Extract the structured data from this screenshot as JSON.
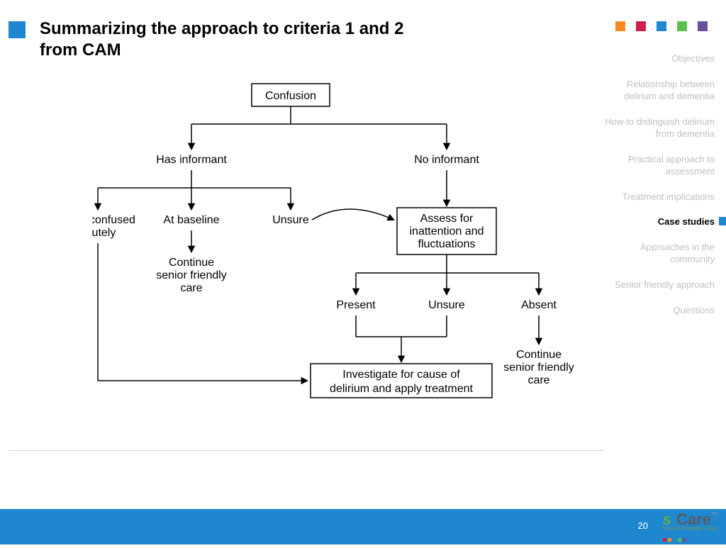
{
  "colors": {
    "blue": "#1e87d0",
    "orange": "#f68b1f",
    "red": "#cc1f4a",
    "green": "#5bbf4b",
    "purple": "#6a4ea0",
    "footer": "#1e87d0",
    "grey_text": "#bfbfbf"
  },
  "title": "Summarizing the approach to criteria 1 and 2 from CAM",
  "top_dots": [
    "#f68b1f",
    "#cc1f4a",
    "#1e87d0",
    "#5bbf4b",
    "#6a4ea0"
  ],
  "sidebar": {
    "items": [
      {
        "label": "Objectives",
        "active": false
      },
      {
        "label": "Relationship between delirium and dementia",
        "active": false
      },
      {
        "label": "How to distinguish delirium from dementia",
        "active": false
      },
      {
        "label": "Practical approach to assessment",
        "active": false
      },
      {
        "label": "Treatment implications",
        "active": false
      },
      {
        "label": "Case studies",
        "active": true
      },
      {
        "label": "Approaches in the community",
        "active": false
      },
      {
        "label": "Senior friendly approach",
        "active": false
      },
      {
        "label": "Questions",
        "active": false
      }
    ],
    "active_marker_color": "#1e87d0"
  },
  "flow": {
    "confusion": "Confusion",
    "has_informant": "Has informant",
    "no_informant": "No informant",
    "more_confused_1": "More confused",
    "more_confused_2": "acutely",
    "at_baseline": "At baseline",
    "unsure": "Unsure",
    "continue_senior_1": "Continue",
    "continue_senior_2": "senior friendly",
    "continue_senior_3": "care",
    "assess_1": "Assess for",
    "assess_2": "inattention and",
    "assess_3": "fluctuations",
    "present": "Present",
    "unsure2": "Unsure",
    "absent": "Absent",
    "investigate_1": "Investigate for cause of",
    "investigate_2": "delirium and apply treatment",
    "cont2_1": "Continue",
    "cont2_2": "senior friendly",
    "cont2_3": "care"
  },
  "footer": {
    "page": "20",
    "logo_sub": "Senior Friendly Care",
    "logo_dots": [
      "#cc1f4a",
      "#f68b1f",
      "#1e87d0",
      "#5bbf4b",
      "#6a4ea0"
    ]
  }
}
